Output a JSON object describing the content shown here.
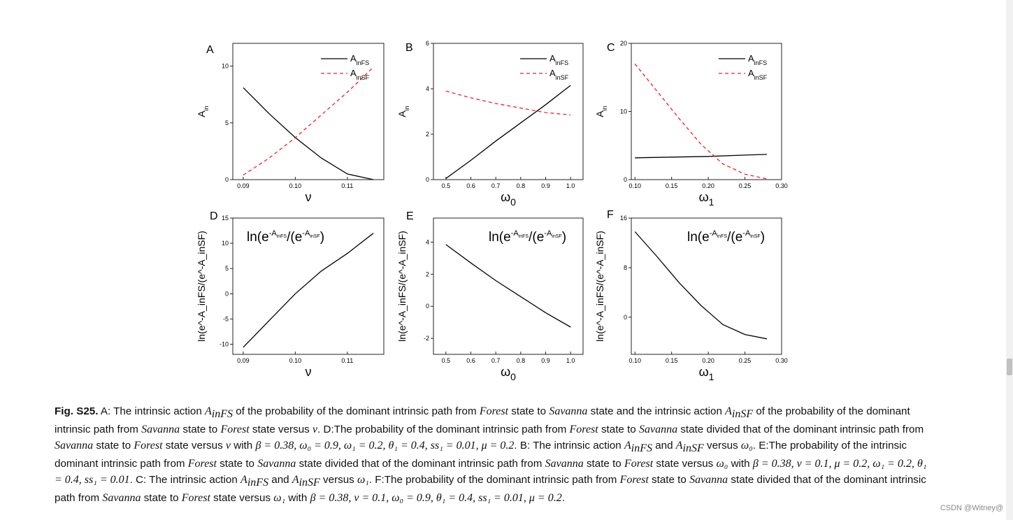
{
  "figure": {
    "panel_labels": [
      "A",
      "B",
      "C",
      "D",
      "E",
      "F"
    ],
    "legend": {
      "fs_main": "A",
      "fs_sub": "inFS",
      "sf_main": "A",
      "sf_sub": "inSF"
    },
    "series_colors": {
      "fs": "#000000",
      "sf": "#e8232a"
    },
    "y_label_top": {
      "main": "A",
      "sub": "in"
    },
    "y_label_bottom": "ln(e^-A_inFS/(e^-A_inSF)",
    "x_labels": {
      "nu": "ν",
      "omega0": {
        "main": "ω",
        "sub": "0"
      },
      "omega1": {
        "main": "ω",
        "sub": "1"
      }
    },
    "inner_title": {
      "p1": "ln(e",
      "sup1": "-A",
      "sub1": "inFS",
      "p2": "/(e",
      "sup2": "-A",
      "sub2": "inSF",
      "p3": ")"
    }
  },
  "chart_data": [
    {
      "panel": "A",
      "type": "line",
      "xlabel": "ν",
      "ylabel": "A_in",
      "xlim": [
        0.088,
        0.117
      ],
      "ylim": [
        0,
        12
      ],
      "x_ticks": [
        "0.09",
        "0.10",
        "0.11"
      ],
      "y_ticks": [
        "0",
        "5",
        "10"
      ],
      "series": [
        {
          "name": "A_inFS",
          "style": "solid",
          "x": [
            0.09,
            0.095,
            0.1,
            0.105,
            0.11,
            0.115
          ],
          "values": [
            8.1,
            5.8,
            3.7,
            1.9,
            0.5,
            0.0
          ]
        },
        {
          "name": "A_inSF",
          "style": "dashed",
          "x": [
            0.09,
            0.095,
            0.1,
            0.105,
            0.11,
            0.115
          ],
          "values": [
            0.4,
            1.9,
            3.7,
            5.7,
            7.7,
            9.9
          ]
        }
      ]
    },
    {
      "panel": "B",
      "type": "line",
      "xlabel": "ω0",
      "ylabel": "A_in",
      "xlim": [
        0.45,
        1.05
      ],
      "ylim": [
        0,
        6
      ],
      "x_ticks": [
        "0.5",
        "0.6",
        "0.7",
        "0.8",
        "0.9",
        "1.0"
      ],
      "y_ticks": [
        "0",
        "2",
        "4",
        "6"
      ],
      "series": [
        {
          "name": "A_inFS",
          "style": "solid",
          "x": [
            0.5,
            0.6,
            0.7,
            0.8,
            0.9,
            1.0
          ],
          "values": [
            0.05,
            0.85,
            1.7,
            2.5,
            3.3,
            4.15
          ]
        },
        {
          "name": "A_inSF",
          "style": "dashed",
          "x": [
            0.5,
            0.6,
            0.7,
            0.8,
            0.9,
            1.0
          ],
          "values": [
            3.9,
            3.6,
            3.35,
            3.15,
            2.95,
            2.85
          ]
        }
      ]
    },
    {
      "panel": "C",
      "type": "line",
      "xlabel": "ω1",
      "ylabel": "A_in",
      "xlim": [
        0.095,
        0.3
      ],
      "ylim": [
        0,
        20
      ],
      "x_ticks": [
        "0.10",
        "0.15",
        "0.20",
        "0.25",
        "0.30"
      ],
      "y_ticks": [
        "0",
        "10",
        "20"
      ],
      "series": [
        {
          "name": "A_inFS",
          "style": "solid",
          "x": [
            0.1,
            0.15,
            0.2,
            0.25,
            0.28
          ],
          "values": [
            3.2,
            3.3,
            3.4,
            3.6,
            3.7
          ]
        },
        {
          "name": "A_inSF",
          "style": "dashed",
          "x": [
            0.1,
            0.13,
            0.16,
            0.19,
            0.22,
            0.25,
            0.28
          ],
          "values": [
            17,
            13.0,
            9.0,
            5.2,
            2.3,
            0.8,
            0.1
          ]
        }
      ]
    },
    {
      "panel": "D",
      "type": "line",
      "xlabel": "ν",
      "ylabel": "ln(e^-A_inFS/(e^-A_inSF)",
      "xlim": [
        0.088,
        0.117
      ],
      "ylim": [
        -12,
        15
      ],
      "x_ticks": [
        "0.09",
        "0.10",
        "0.11"
      ],
      "y_ticks": [
        "-10",
        "-5",
        "0",
        "5",
        "10",
        "15"
      ],
      "series": [
        {
          "name": "ln ratio",
          "style": "solid",
          "x": [
            0.09,
            0.095,
            0.1,
            0.105,
            0.11,
            0.115
          ],
          "values": [
            -10.6,
            -5.3,
            0.0,
            4.5,
            8.0,
            12.0
          ]
        }
      ]
    },
    {
      "panel": "E",
      "type": "line",
      "xlabel": "ω0",
      "ylabel": "ln(e^-A_inFS/(e^-A_inSF)",
      "xlim": [
        0.45,
        1.05
      ],
      "ylim": [
        -3,
        5.5
      ],
      "x_ticks": [
        "0.5",
        "0.6",
        "0.7",
        "0.8",
        "0.9",
        "1.0"
      ],
      "y_ticks": [
        "-2",
        "0",
        "2",
        "4"
      ],
      "series": [
        {
          "name": "ln ratio",
          "style": "solid",
          "x": [
            0.5,
            0.6,
            0.7,
            0.8,
            0.9,
            1.0
          ],
          "values": [
            3.85,
            2.7,
            1.6,
            0.6,
            -0.4,
            -1.3
          ]
        }
      ]
    },
    {
      "panel": "F",
      "type": "line",
      "xlabel": "ω1",
      "ylabel": "ln(e^-A_inFS/(e^-A_inSF)",
      "xlim": [
        0.095,
        0.3
      ],
      "ylim": [
        -6,
        16
      ],
      "x_ticks": [
        "0.10",
        "0.15",
        "0.20",
        "0.25",
        "0.30"
      ],
      "y_ticks": [
        "0",
        "8",
        "16"
      ],
      "series": [
        {
          "name": "ln ratio",
          "style": "solid",
          "x": [
            0.1,
            0.13,
            0.16,
            0.19,
            0.22,
            0.25,
            0.28
          ],
          "values": [
            13.8,
            9.8,
            5.6,
            1.9,
            -1.2,
            -2.8,
            -3.5
          ]
        }
      ]
    }
  ],
  "caption": {
    "lead": "Fig. S25.",
    "segments": [
      " A: The intrinsic action ",
      "A",
      "inFS",
      " of the probability of the dominant intrinsic path from ",
      "Forest",
      " state to ",
      "Savanna",
      " state and the intrinsic action ",
      "A",
      "inSF",
      " of the probability of the dominant intrinsic path from ",
      "Savanna",
      " state to ",
      "Forest",
      " state versus ",
      "ν",
      ". D:The probability of the dominant intrinsic path from ",
      "Forest",
      " state to ",
      "Savanna",
      " state divided that of the dominant intrinsic path from ",
      "Savanna",
      " state to ",
      "Forest",
      " state versus ",
      "ν",
      " with ",
      "β = 0.38, ω₀ = 0.9, ω₁ = 0.2, θ₁ = 0.4, ss₁ = 0.01, μ = 0.2",
      ". B: The intrinsic action ",
      "A",
      "inFS",
      " and ",
      "A",
      "inSF",
      " versus ",
      "ω₀",
      ". E:The probability of the intrinsic dominant intrinsic path from ",
      "Forest",
      " state to ",
      "Savanna",
      " state divided that of the dominant intrinsic path from ",
      "Savanna",
      " state to ",
      "Forest",
      " state versus ",
      "ω₀",
      " with ",
      "β = 0.38, ν = 0.1, μ = 0.2, ω₁ = 0.2, θ₁ = 0.4, ss₁ = 0.01",
      ". C: The intrinsic action ",
      "A",
      "inFS",
      " and ",
      "A",
      "inSF",
      " versus ",
      "ω₁",
      ". F:The probability of the dominant intrinsic path from ",
      "Forest",
      " state to ",
      "Savanna",
      " state divided that of the dominant intrinsic path from ",
      "Savanna",
      " state to ",
      "Forest",
      " state versus ",
      "ω₁",
      " with ",
      "β = 0.38, ν = 0.1, ω₀ = 0.9, θ₁ = 0.4, ss₁ = 0.01, μ = 0.2",
      "."
    ]
  },
  "watermark": "CSDN @Witney@"
}
